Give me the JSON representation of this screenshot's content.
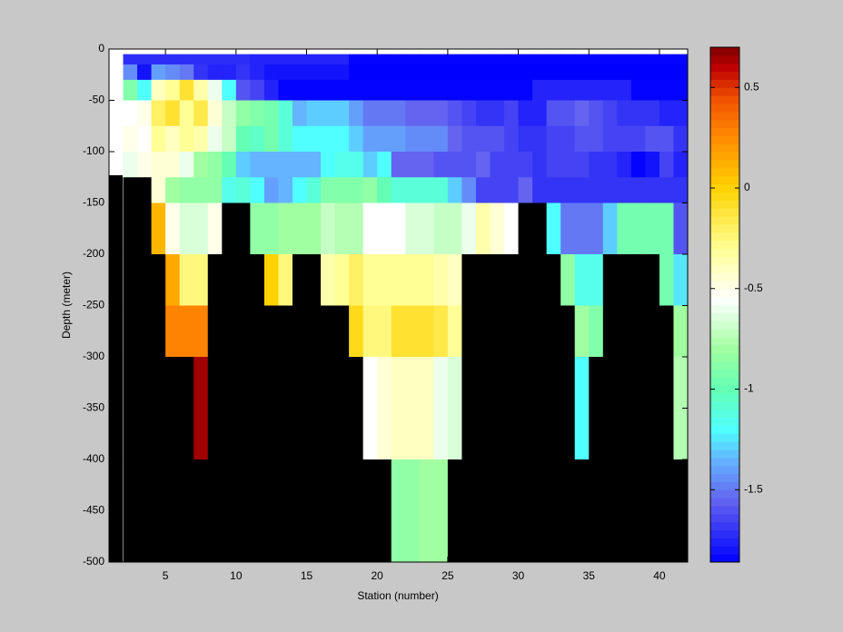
{
  "chart_data": {
    "type": "heatmap",
    "xlabel": "Station (number)",
    "ylabel": "Depth (meter)",
    "xlim": [
      1,
      42
    ],
    "ylim": [
      -500,
      0
    ],
    "xticks": [
      5,
      10,
      15,
      20,
      25,
      30,
      35,
      40
    ],
    "yticks": [
      -500,
      -450,
      -400,
      -350,
      -300,
      -250,
      -200,
      -150,
      -100,
      -50,
      0
    ],
    "x_edges": [
      2,
      3,
      4,
      5,
      6,
      7,
      8,
      9,
      10,
      11,
      12,
      13,
      14,
      15,
      16,
      17,
      18,
      19,
      20,
      21,
      22,
      23,
      24,
      25,
      26,
      27,
      28,
      29,
      30,
      31,
      32,
      33,
      34,
      35,
      36,
      37,
      38,
      39,
      40,
      41,
      42
    ],
    "depth_edges": [
      -5,
      -15,
      -30,
      -50,
      -75,
      -100,
      -125,
      -150,
      -200,
      -250,
      -300,
      -400,
      -500
    ],
    "values": [
      [
        -1.72,
        -1.72,
        -1.72,
        -1.72,
        -1.72,
        -1.72,
        -1.72,
        -1.72,
        -1.72,
        -1.75,
        -1.75,
        -1.75,
        -1.75,
        -1.75,
        -1.75,
        -1.75,
        -1.85,
        -1.85,
        -1.85,
        -1.85,
        -1.85,
        -1.85,
        -1.85,
        -1.85,
        -1.85,
        -1.85,
        -1.85,
        -1.85,
        -1.85,
        -1.85,
        -1.85,
        -1.85,
        -1.85,
        -1.85,
        -1.85,
        -1.85,
        -1.85,
        -1.85,
        -1.85,
        -1.85
      ],
      [
        -1.45,
        -1.8,
        -1.4,
        -1.45,
        -1.5,
        -1.7,
        -1.75,
        -1.75,
        -1.7,
        -1.75,
        -1.8,
        -1.8,
        -1.8,
        -1.8,
        -1.8,
        -1.8,
        -1.86,
        -1.86,
        -1.86,
        -1.86,
        -1.86,
        -1.86,
        -1.86,
        -1.86,
        -1.86,
        -1.86,
        -1.86,
        -1.86,
        -1.86,
        -1.86,
        -1.86,
        -1.86,
        -1.86,
        -1.86,
        -1.86,
        -1.86,
        -1.86,
        -1.86,
        -1.86,
        -1.86
      ],
      [
        -0.9,
        -1.2,
        -0.4,
        -0.3,
        -0.1,
        -0.35,
        -0.6,
        -1.2,
        -1.6,
        -1.65,
        -1.75,
        -1.85,
        -1.85,
        -1.85,
        -1.85,
        -1.85,
        -1.85,
        -1.85,
        -1.85,
        -1.85,
        -1.85,
        -1.85,
        -1.85,
        -1.85,
        -1.85,
        -1.85,
        -1.85,
        -1.85,
        -1.85,
        -1.75,
        -1.75,
        -1.75,
        -1.75,
        -1.75,
        -1.75,
        -1.75,
        -1.85,
        -1.85,
        -1.85,
        -1.85
      ],
      [
        -0.55,
        -0.5,
        -0.2,
        -0.1,
        -0.3,
        -0.15,
        -0.45,
        -0.7,
        -0.85,
        -0.9,
        -0.95,
        -1.1,
        -1.35,
        -1.3,
        -1.3,
        -1.3,
        -1.4,
        -1.5,
        -1.5,
        -1.5,
        -1.55,
        -1.55,
        -1.55,
        -1.6,
        -1.65,
        -1.7,
        -1.7,
        -1.65,
        -1.75,
        -1.75,
        -1.6,
        -1.6,
        -1.55,
        -1.6,
        -1.65,
        -1.7,
        -1.7,
        -1.7,
        -1.75,
        -1.75
      ],
      [
        -0.5,
        -0.55,
        -0.3,
        -0.4,
        -0.3,
        -0.35,
        -0.6,
        -0.7,
        -1.0,
        -1.05,
        -0.95,
        -1.1,
        -1.2,
        -1.2,
        -1.2,
        -1.2,
        -1.3,
        -1.4,
        -1.4,
        -1.4,
        -1.45,
        -1.45,
        -1.45,
        -1.55,
        -1.6,
        -1.6,
        -1.6,
        -1.65,
        -1.7,
        -1.7,
        -1.65,
        -1.65,
        -1.6,
        -1.6,
        -1.65,
        -1.65,
        -1.65,
        -1.6,
        -1.6,
        -1.7
      ],
      [
        -0.6,
        -0.5,
        -0.45,
        -0.45,
        -0.6,
        -0.8,
        -0.85,
        -1.0,
        -1.3,
        -1.35,
        -1.35,
        -1.35,
        -1.35,
        -1.35,
        -1.2,
        -1.15,
        -1.15,
        -1.3,
        -1.2,
        -1.55,
        -1.55,
        -1.55,
        -1.6,
        -1.6,
        -1.6,
        -1.55,
        -1.65,
        -1.65,
        -1.65,
        -1.7,
        -1.65,
        -1.65,
        -1.65,
        -1.7,
        -1.7,
        -1.75,
        -1.85,
        -1.8,
        -1.65,
        -1.75
      ],
      [
        null,
        null,
        -0.45,
        -0.8,
        -0.85,
        -0.85,
        -0.85,
        -1.15,
        -1.1,
        -1.2,
        -1.4,
        -1.35,
        -1.2,
        -1.1,
        -0.9,
        -0.9,
        -0.9,
        -0.85,
        -1.0,
        -1.1,
        -1.1,
        -1.1,
        -1.1,
        -1.3,
        -1.45,
        -1.65,
        -1.65,
        -1.65,
        -1.55,
        -1.7,
        -1.7,
        -1.7,
        -1.7,
        -1.7,
        -1.7,
        -1.7,
        -1.7,
        -1.7,
        -1.7,
        -1.7
      ],
      [
        null,
        null,
        0.1,
        -0.5,
        -0.65,
        -0.65,
        -0.5,
        null,
        null,
        -0.85,
        -0.85,
        -0.8,
        -0.8,
        -0.8,
        -0.7,
        -0.75,
        -0.75,
        -0.55,
        -0.55,
        -0.55,
        -0.65,
        -0.65,
        -0.7,
        -0.7,
        -0.6,
        -0.35,
        -0.45,
        -0.55,
        null,
        null,
        -1.2,
        -1.5,
        -1.5,
        -1.5,
        -1.3,
        -0.95,
        -0.95,
        -0.95,
        -0.95,
        -1.6
      ],
      [
        null,
        null,
        null,
        0.15,
        -0.25,
        -0.25,
        null,
        null,
        null,
        null,
        0.0,
        -0.25,
        null,
        null,
        -0.35,
        -0.3,
        -0.2,
        -0.3,
        -0.3,
        -0.3,
        -0.3,
        -0.3,
        -0.35,
        -0.4,
        null,
        null,
        null,
        null,
        null,
        null,
        null,
        -0.85,
        -1.15,
        -1.15,
        null,
        null,
        null,
        null,
        -0.95,
        -1.25
      ],
      [
        null,
        null,
        null,
        0.28,
        0.28,
        0.28,
        null,
        null,
        null,
        null,
        null,
        null,
        null,
        null,
        null,
        null,
        -0.05,
        -0.25,
        -0.25,
        -0.1,
        -0.1,
        -0.1,
        -0.15,
        -0.3,
        null,
        null,
        null,
        null,
        null,
        null,
        null,
        null,
        -0.8,
        -0.9,
        null,
        null,
        null,
        null,
        null,
        -0.8
      ],
      [
        null,
        null,
        null,
        null,
        null,
        0.65,
        null,
        null,
        null,
        null,
        null,
        null,
        null,
        null,
        null,
        null,
        null,
        -0.55,
        -0.45,
        -0.4,
        -0.4,
        -0.4,
        -0.6,
        -0.65,
        null,
        null,
        null,
        null,
        null,
        null,
        null,
        null,
        -1.2,
        null,
        null,
        null,
        null,
        null,
        null,
        -0.75
      ],
      [
        null,
        null,
        null,
        null,
        null,
        null,
        null,
        null,
        null,
        null,
        null,
        null,
        null,
        null,
        null,
        null,
        null,
        null,
        null,
        -0.85,
        -0.85,
        -0.8,
        -0.8,
        null,
        null,
        null,
        null,
        null,
        null,
        null,
        null,
        null,
        null,
        null,
        null,
        null,
        null,
        null,
        null,
        null
      ]
    ],
    "nan_color": "#000000",
    "clim": [
      -1.86,
      0.7
    ],
    "cticks": [
      -1.5,
      -1,
      -0.5,
      0,
      0.5
    ],
    "colormap": [
      [
        -1.86,
        "#0000ff"
      ],
      [
        -1.55,
        "#6464f0"
      ],
      [
        -1.35,
        "#64b4ff"
      ],
      [
        -1.2,
        "#50ffff"
      ],
      [
        -1.0,
        "#64ffb4"
      ],
      [
        -0.8,
        "#a0ffa0"
      ],
      [
        -0.55,
        "#ffffff"
      ],
      [
        -0.3,
        "#ffff96"
      ],
      [
        0,
        "#ffd200"
      ],
      [
        0.25,
        "#ff8c00"
      ],
      [
        0.45,
        "#f05000"
      ],
      [
        0.6,
        "#be0000"
      ],
      [
        0.7,
        "#800000"
      ]
    ]
  }
}
